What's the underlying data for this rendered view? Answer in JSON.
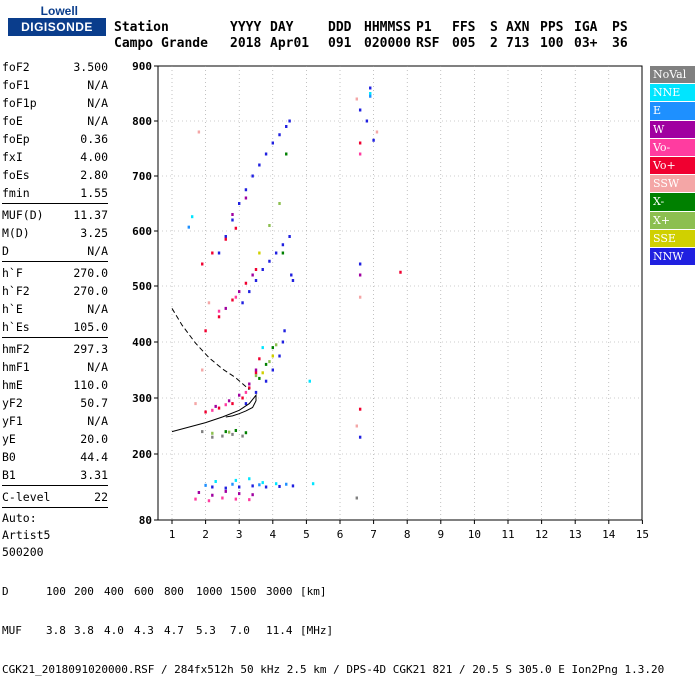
{
  "logo": {
    "top": "Lowell",
    "bottom": "DIGISONDE"
  },
  "header": {
    "labels": [
      "Station",
      "YYYY",
      "DAY",
      "DDD",
      "HHMMSS",
      "P1",
      "FFS",
      "S",
      "AXN",
      "PPS",
      "IGA",
      "PS"
    ],
    "values": [
      "Campo Grande",
      "2018",
      "Apr01",
      "091",
      "020000",
      "RSF",
      "005",
      "2",
      "713",
      "100",
      "03+",
      "36"
    ]
  },
  "params": {
    "group1": [
      {
        "name": "foF2",
        "value": "3.500"
      },
      {
        "name": "foF1",
        "value": "N/A"
      },
      {
        "name": "foF1p",
        "value": "N/A"
      },
      {
        "name": "foE",
        "value": "N/A"
      },
      {
        "name": "foEp",
        "value": "0.36"
      },
      {
        "name": "fxI",
        "value": "4.00"
      },
      {
        "name": "foEs",
        "value": "2.80"
      },
      {
        "name": "fmin",
        "value": "1.55"
      }
    ],
    "group2": [
      {
        "name": "MUF(D)",
        "value": "11.37"
      },
      {
        "name": "M(D)",
        "value": "3.25"
      },
      {
        "name": "D",
        "value": "N/A"
      }
    ],
    "group3": [
      {
        "name": "h`F",
        "value": "270.0"
      },
      {
        "name": "h`F2",
        "value": "270.0"
      },
      {
        "name": "h`E",
        "value": "N/A"
      },
      {
        "name": "h`Es",
        "value": "105.0"
      }
    ],
    "group4": [
      {
        "name": "hmF2",
        "value": "297.3"
      },
      {
        "name": "hmF1",
        "value": "N/A"
      },
      {
        "name": "hmE",
        "value": "110.0"
      },
      {
        "name": "yF2",
        "value": "50.7"
      },
      {
        "name": "yF1",
        "value": "N/A"
      },
      {
        "name": "yE",
        "value": "20.0"
      },
      {
        "name": "B0",
        "value": "44.4"
      },
      {
        "name": "B1",
        "value": "3.31"
      }
    ],
    "group5": [
      {
        "name": "C-level",
        "value": "22"
      }
    ],
    "autoscaling": [
      "Auto:",
      "Artist5",
      "500200"
    ]
  },
  "legend": [
    {
      "label": "NoVal",
      "color": "#808080"
    },
    {
      "label": "NNE",
      "color": "#00e5ff"
    },
    {
      "label": "E",
      "color": "#1e90ff"
    },
    {
      "label": "W",
      "color": "#a000a0"
    },
    {
      "label": "Vo-",
      "color": "#ff3ca0"
    },
    {
      "label": "Vo+",
      "color": "#f00030"
    },
    {
      "label": "SSW",
      "color": "#f4a6a6"
    },
    {
      "label": "X-",
      "color": "#008000"
    },
    {
      "label": "X+",
      "color": "#8cbf50"
    },
    {
      "label": "SSE",
      "color": "#d0d000"
    },
    {
      "label": "NNW",
      "color": "#2020e0"
    }
  ],
  "footer": {
    "d_label": "D",
    "d_values": [
      "100",
      "200",
      "400",
      "600",
      "800",
      "1000",
      "1500",
      "3000"
    ],
    "d_unit": "[km]",
    "muf_label": "MUF",
    "muf_values": [
      "3.8",
      "3.8",
      "4.0",
      "4.3",
      "4.7",
      "5.3",
      "7.0",
      "11.4"
    ],
    "muf_unit": "[MHz]",
    "info": "CGK21_2018091020000.RSF / 284fx512h 50 kHz 2.5 km / DPS-4D CGK21 821 / 20.5 S 305.0 E Ion2Png 1.3.20"
  },
  "chart_data": {
    "type": "scatter",
    "xlim": [
      1,
      15
    ],
    "ylim": [
      80,
      900
    ],
    "x_ticks": [
      1,
      2,
      3,
      4,
      5,
      6,
      7,
      8,
      9,
      10,
      11,
      12,
      13,
      14,
      15
    ],
    "y_ticks": [
      80,
      200,
      300,
      400,
      500,
      600,
      700,
      800,
      900
    ],
    "grid": "dotted",
    "series": [
      {
        "color": "#2020e0",
        "points": [
          [
            2.4,
            560
          ],
          [
            2.6,
            590
          ],
          [
            2.8,
            620
          ],
          [
            3.0,
            650
          ],
          [
            3.2,
            675
          ],
          [
            3.4,
            700
          ],
          [
            3.6,
            720
          ],
          [
            3.8,
            740
          ],
          [
            4.0,
            760
          ],
          [
            4.2,
            775
          ],
          [
            4.4,
            790
          ],
          [
            4.5,
            800
          ],
          [
            3.1,
            470
          ],
          [
            3.3,
            490
          ],
          [
            3.5,
            510
          ],
          [
            3.7,
            530
          ],
          [
            3.9,
            545
          ],
          [
            4.1,
            560
          ],
          [
            4.3,
            575
          ],
          [
            4.5,
            590
          ],
          [
            4.55,
            520
          ],
          [
            4.6,
            510
          ],
          [
            3.2,
            290
          ],
          [
            3.5,
            310
          ],
          [
            3.8,
            330
          ],
          [
            4.0,
            350
          ],
          [
            4.2,
            375
          ],
          [
            4.3,
            400
          ],
          [
            4.35,
            420
          ],
          [
            2.2,
            140
          ],
          [
            2.6,
            138
          ],
          [
            3.0,
            140
          ],
          [
            3.4,
            142
          ],
          [
            3.8,
            140
          ],
          [
            4.2,
            141
          ],
          [
            4.6,
            142
          ],
          [
            6.6,
            820
          ],
          [
            6.8,
            800
          ],
          [
            6.9,
            860
          ],
          [
            7.0,
            765
          ],
          [
            6.6,
            540
          ],
          [
            6.6,
            230
          ]
        ]
      },
      {
        "color": "#f00030",
        "points": [
          [
            2.0,
            275
          ],
          [
            2.4,
            282
          ],
          [
            2.8,
            290
          ],
          [
            3.1,
            300
          ],
          [
            3.3,
            318
          ],
          [
            3.5,
            345
          ],
          [
            3.6,
            370
          ],
          [
            2.0,
            420
          ],
          [
            2.4,
            445
          ],
          [
            2.8,
            475
          ],
          [
            3.2,
            505
          ],
          [
            3.5,
            530
          ],
          [
            1.9,
            540
          ],
          [
            2.2,
            560
          ],
          [
            2.6,
            585
          ],
          [
            2.9,
            605
          ],
          [
            7.8,
            525
          ],
          [
            6.6,
            760
          ],
          [
            6.6,
            280
          ]
        ]
      },
      {
        "color": "#a000a0",
        "points": [
          [
            1.8,
            130
          ],
          [
            2.2,
            125
          ],
          [
            2.6,
            132
          ],
          [
            3.0,
            128
          ],
          [
            3.4,
            126
          ],
          [
            2.3,
            285
          ],
          [
            2.7,
            295
          ],
          [
            3.0,
            305
          ],
          [
            3.3,
            325
          ],
          [
            3.5,
            350
          ],
          [
            2.6,
            460
          ],
          [
            3.0,
            490
          ],
          [
            3.4,
            520
          ],
          [
            2.8,
            630
          ],
          [
            3.2,
            660
          ],
          [
            6.6,
            520
          ]
        ]
      },
      {
        "color": "#ff3ca0",
        "points": [
          [
            1.7,
            118
          ],
          [
            2.1,
            115
          ],
          [
            2.5,
            120
          ],
          [
            2.9,
            118
          ],
          [
            3.3,
            117
          ],
          [
            2.2,
            278
          ],
          [
            2.6,
            288
          ],
          [
            3.2,
            310
          ],
          [
            2.4,
            455
          ],
          [
            2.9,
            480
          ],
          [
            6.6,
            740
          ]
        ]
      },
      {
        "color": "#00e5ff",
        "points": [
          [
            1.6,
            626
          ],
          [
            2.3,
            150
          ],
          [
            2.9,
            152
          ],
          [
            3.3,
            155
          ],
          [
            3.7,
            148
          ],
          [
            4.1,
            146
          ],
          [
            5.2,
            146
          ],
          [
            5.1,
            330
          ],
          [
            3.7,
            390
          ],
          [
            6.9,
            850
          ]
        ]
      },
      {
        "color": "#1e90ff",
        "points": [
          [
            1.5,
            607
          ],
          [
            2.0,
            143
          ],
          [
            2.8,
            145
          ],
          [
            3.6,
            144
          ],
          [
            4.4,
            145
          ],
          [
            6.9,
            845
          ]
        ]
      },
      {
        "color": "#008000",
        "points": [
          [
            3.6,
            335
          ],
          [
            3.8,
            360
          ],
          [
            4.0,
            390
          ],
          [
            2.6,
            240
          ],
          [
            2.9,
            242
          ],
          [
            3.2,
            238
          ],
          [
            4.3,
            560
          ],
          [
            4.4,
            740
          ]
        ]
      },
      {
        "color": "#8cbf50",
        "points": [
          [
            3.5,
            340
          ],
          [
            3.9,
            365
          ],
          [
            4.1,
            395
          ],
          [
            3.9,
            610
          ],
          [
            4.2,
            650
          ],
          [
            2.2,
            237
          ],
          [
            2.7,
            239
          ]
        ]
      },
      {
        "color": "#d0d000",
        "points": [
          [
            3.7,
            345
          ],
          [
            4.0,
            375
          ],
          [
            3.6,
            560
          ]
        ]
      },
      {
        "color": "#f4a6a6",
        "points": [
          [
            1.8,
            780
          ],
          [
            1.9,
            350
          ],
          [
            1.7,
            290
          ],
          [
            2.1,
            470
          ],
          [
            6.5,
            840
          ],
          [
            7.1,
            780
          ],
          [
            6.6,
            480
          ],
          [
            6.5,
            250
          ]
        ]
      },
      {
        "color": "#808080",
        "points": [
          [
            1.9,
            240
          ],
          [
            2.2,
            230
          ],
          [
            2.5,
            232
          ],
          [
            2.8,
            235
          ],
          [
            3.1,
            232
          ],
          [
            6.5,
            120
          ]
        ]
      }
    ],
    "curves": [
      {
        "style": "dashed",
        "points": [
          [
            1.0,
            460
          ],
          [
            1.3,
            430
          ],
          [
            1.7,
            398
          ],
          [
            2.1,
            372
          ],
          [
            2.5,
            352
          ],
          [
            2.9,
            336
          ],
          [
            3.3,
            315
          ]
        ]
      },
      {
        "style": "solid",
        "points": [
          [
            1.0,
            240
          ],
          [
            1.5,
            248
          ],
          [
            2.0,
            256
          ],
          [
            2.5,
            266
          ],
          [
            3.0,
            278
          ],
          [
            3.3,
            290
          ],
          [
            3.5,
            305
          ],
          [
            3.5,
            295
          ],
          [
            3.4,
            283
          ],
          [
            3.2,
            277
          ],
          [
            3.0,
            272
          ],
          [
            2.8,
            268
          ],
          [
            2.6,
            266
          ]
        ]
      }
    ]
  }
}
